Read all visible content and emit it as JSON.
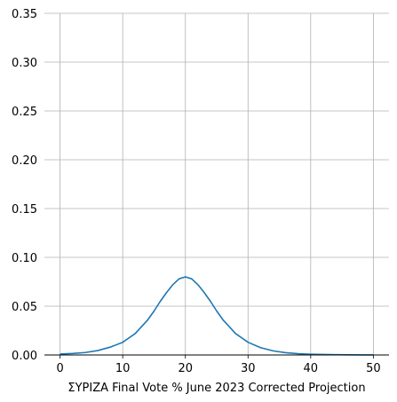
{
  "chart_data": {
    "type": "line",
    "title": "",
    "xlabel": "ΣΥΡΙΖΑ Final Vote % June 2023 Corrected Projection",
    "ylabel": "",
    "xlim": [
      -2.5,
      52.5
    ],
    "ylim": [
      0,
      0.35
    ],
    "xticks": [
      "0",
      "10",
      "20",
      "30",
      "40",
      "50"
    ],
    "yticks": [
      "0.00",
      "0.05",
      "0.10",
      "0.15",
      "0.20",
      "0.25",
      "0.30",
      "0.35"
    ],
    "grid": true,
    "legend": "none",
    "series": [
      {
        "color": "#1f77b4",
        "x": [
          0,
          2,
          4,
          6,
          8,
          10,
          12,
          14,
          15,
          16,
          17,
          18,
          19,
          20,
          21,
          22,
          23,
          24,
          25,
          26,
          28,
          30,
          32,
          34,
          36,
          38,
          40,
          42,
          44,
          46,
          48,
          50
        ],
        "y": [
          0.001,
          0.0015,
          0.0025,
          0.0045,
          0.008,
          0.013,
          0.022,
          0.036,
          0.045,
          0.055,
          0.064,
          0.072,
          0.078,
          0.08,
          0.078,
          0.072,
          0.064,
          0.055,
          0.045,
          0.036,
          0.022,
          0.013,
          0.0075,
          0.0042,
          0.0023,
          0.0013,
          0.0008,
          0.0005,
          0.0003,
          0.0002,
          0.0001,
          0.0001
        ]
      }
    ]
  },
  "colors": {
    "grid": "#b0b0b0",
    "axis": "#000000",
    "line": "#1f77b4"
  }
}
